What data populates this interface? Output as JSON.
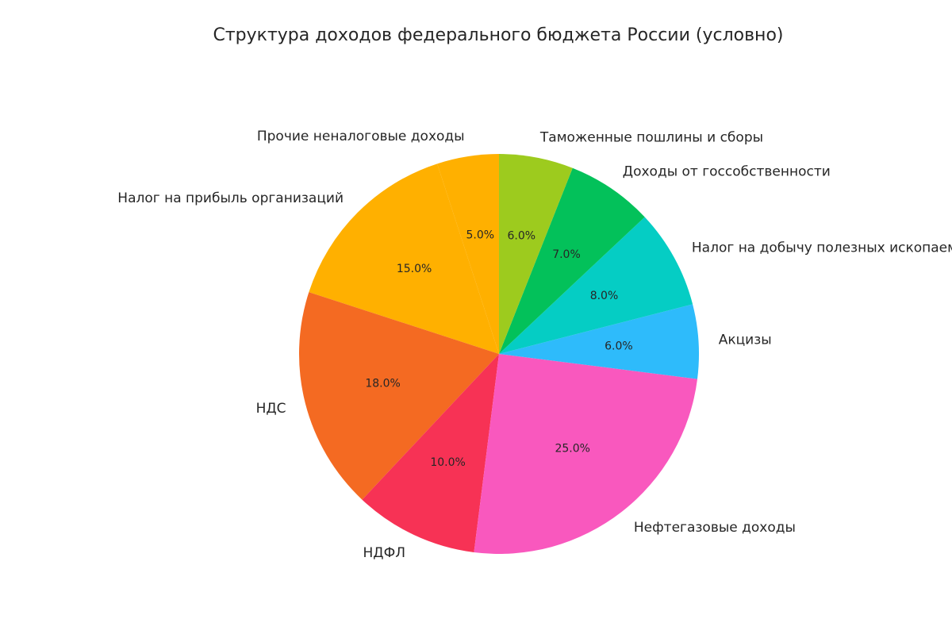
{
  "chart_data": {
    "type": "pie",
    "title": "Структура доходов федерального бюджета России (условно)",
    "start_angle_deg": 108,
    "direction": "counterclockwise",
    "slices": [
      {
        "label": "Налог на прибыль организаций",
        "value": 15.0,
        "pct_label": "15.0%",
        "color": "#FFB000"
      },
      {
        "label": "НДС",
        "value": 18.0,
        "pct_label": "18.0%",
        "color": "#F46A22"
      },
      {
        "label": "НДФЛ",
        "value": 10.0,
        "pct_label": "10.0%",
        "color": "#F73255"
      },
      {
        "label": "Нефтегазовые доходы",
        "value": 25.0,
        "pct_label": "25.0%",
        "color": "#F958BE"
      },
      {
        "label": "Акцизы",
        "value": 6.0,
        "pct_label": "6.0%",
        "color": "#2EBBFB"
      },
      {
        "label": "Налог на добычу полезных ископаемых",
        "value": 8.0,
        "pct_label": "8.0%",
        "color": "#05CDC4"
      },
      {
        "label": "Доходы от госсобственности",
        "value": 7.0,
        "pct_label": "7.0%",
        "color": "#03C15A"
      },
      {
        "label": "Таможенные пошлины и сборы",
        "value": 6.0,
        "pct_label": "6.0%",
        "color": "#9DCB1E"
      },
      {
        "label": "Прочие неналоговые доходы",
        "value": 5.0,
        "pct_label": "5.0%",
        "color": "#FFB000"
      }
    ]
  }
}
